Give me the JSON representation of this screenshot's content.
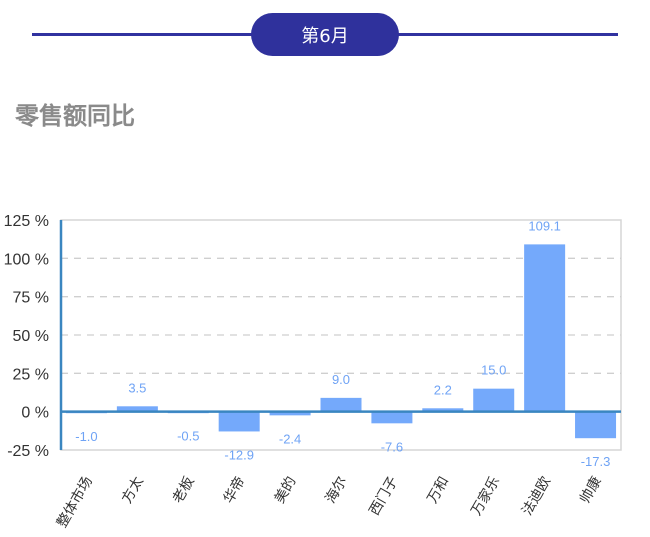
{
  "header": {
    "month_label": "第6月"
  },
  "section_title": "零售额同比",
  "colors": {
    "accent": "#2f319c",
    "bar": "#74a9fb",
    "label": "#6fa3f5",
    "axis": "#3a86c0"
  },
  "chart_data": {
    "type": "bar",
    "categories": [
      "整体市场",
      "方太",
      "老板",
      "华帝",
      "美的",
      "海尔",
      "西门子",
      "万和",
      "万家乐",
      "法迪欧",
      "帅康"
    ],
    "values": [
      -1.0,
      3.5,
      -0.5,
      -12.9,
      -2.4,
      9.0,
      -7.6,
      2.2,
      15.0,
      109.1,
      -17.3
    ],
    "value_labels": [
      "-1.0",
      "3.5",
      "-0.5",
      "-12.9",
      "-2.4",
      "9.0",
      "-7.6",
      "2.2",
      "15.0",
      "109.1",
      "-17.3"
    ],
    "ylim": [
      -25,
      125
    ],
    "yticks": [
      -25,
      0,
      25,
      50,
      75,
      100,
      125
    ],
    "ytick_labels": [
      "-25 %",
      "0 %",
      "25 %",
      "50 %",
      "75 %",
      "100 %",
      "125 %"
    ],
    "grid": "horizontal dashed",
    "xlabel": "",
    "ylabel": "",
    "title": ""
  }
}
